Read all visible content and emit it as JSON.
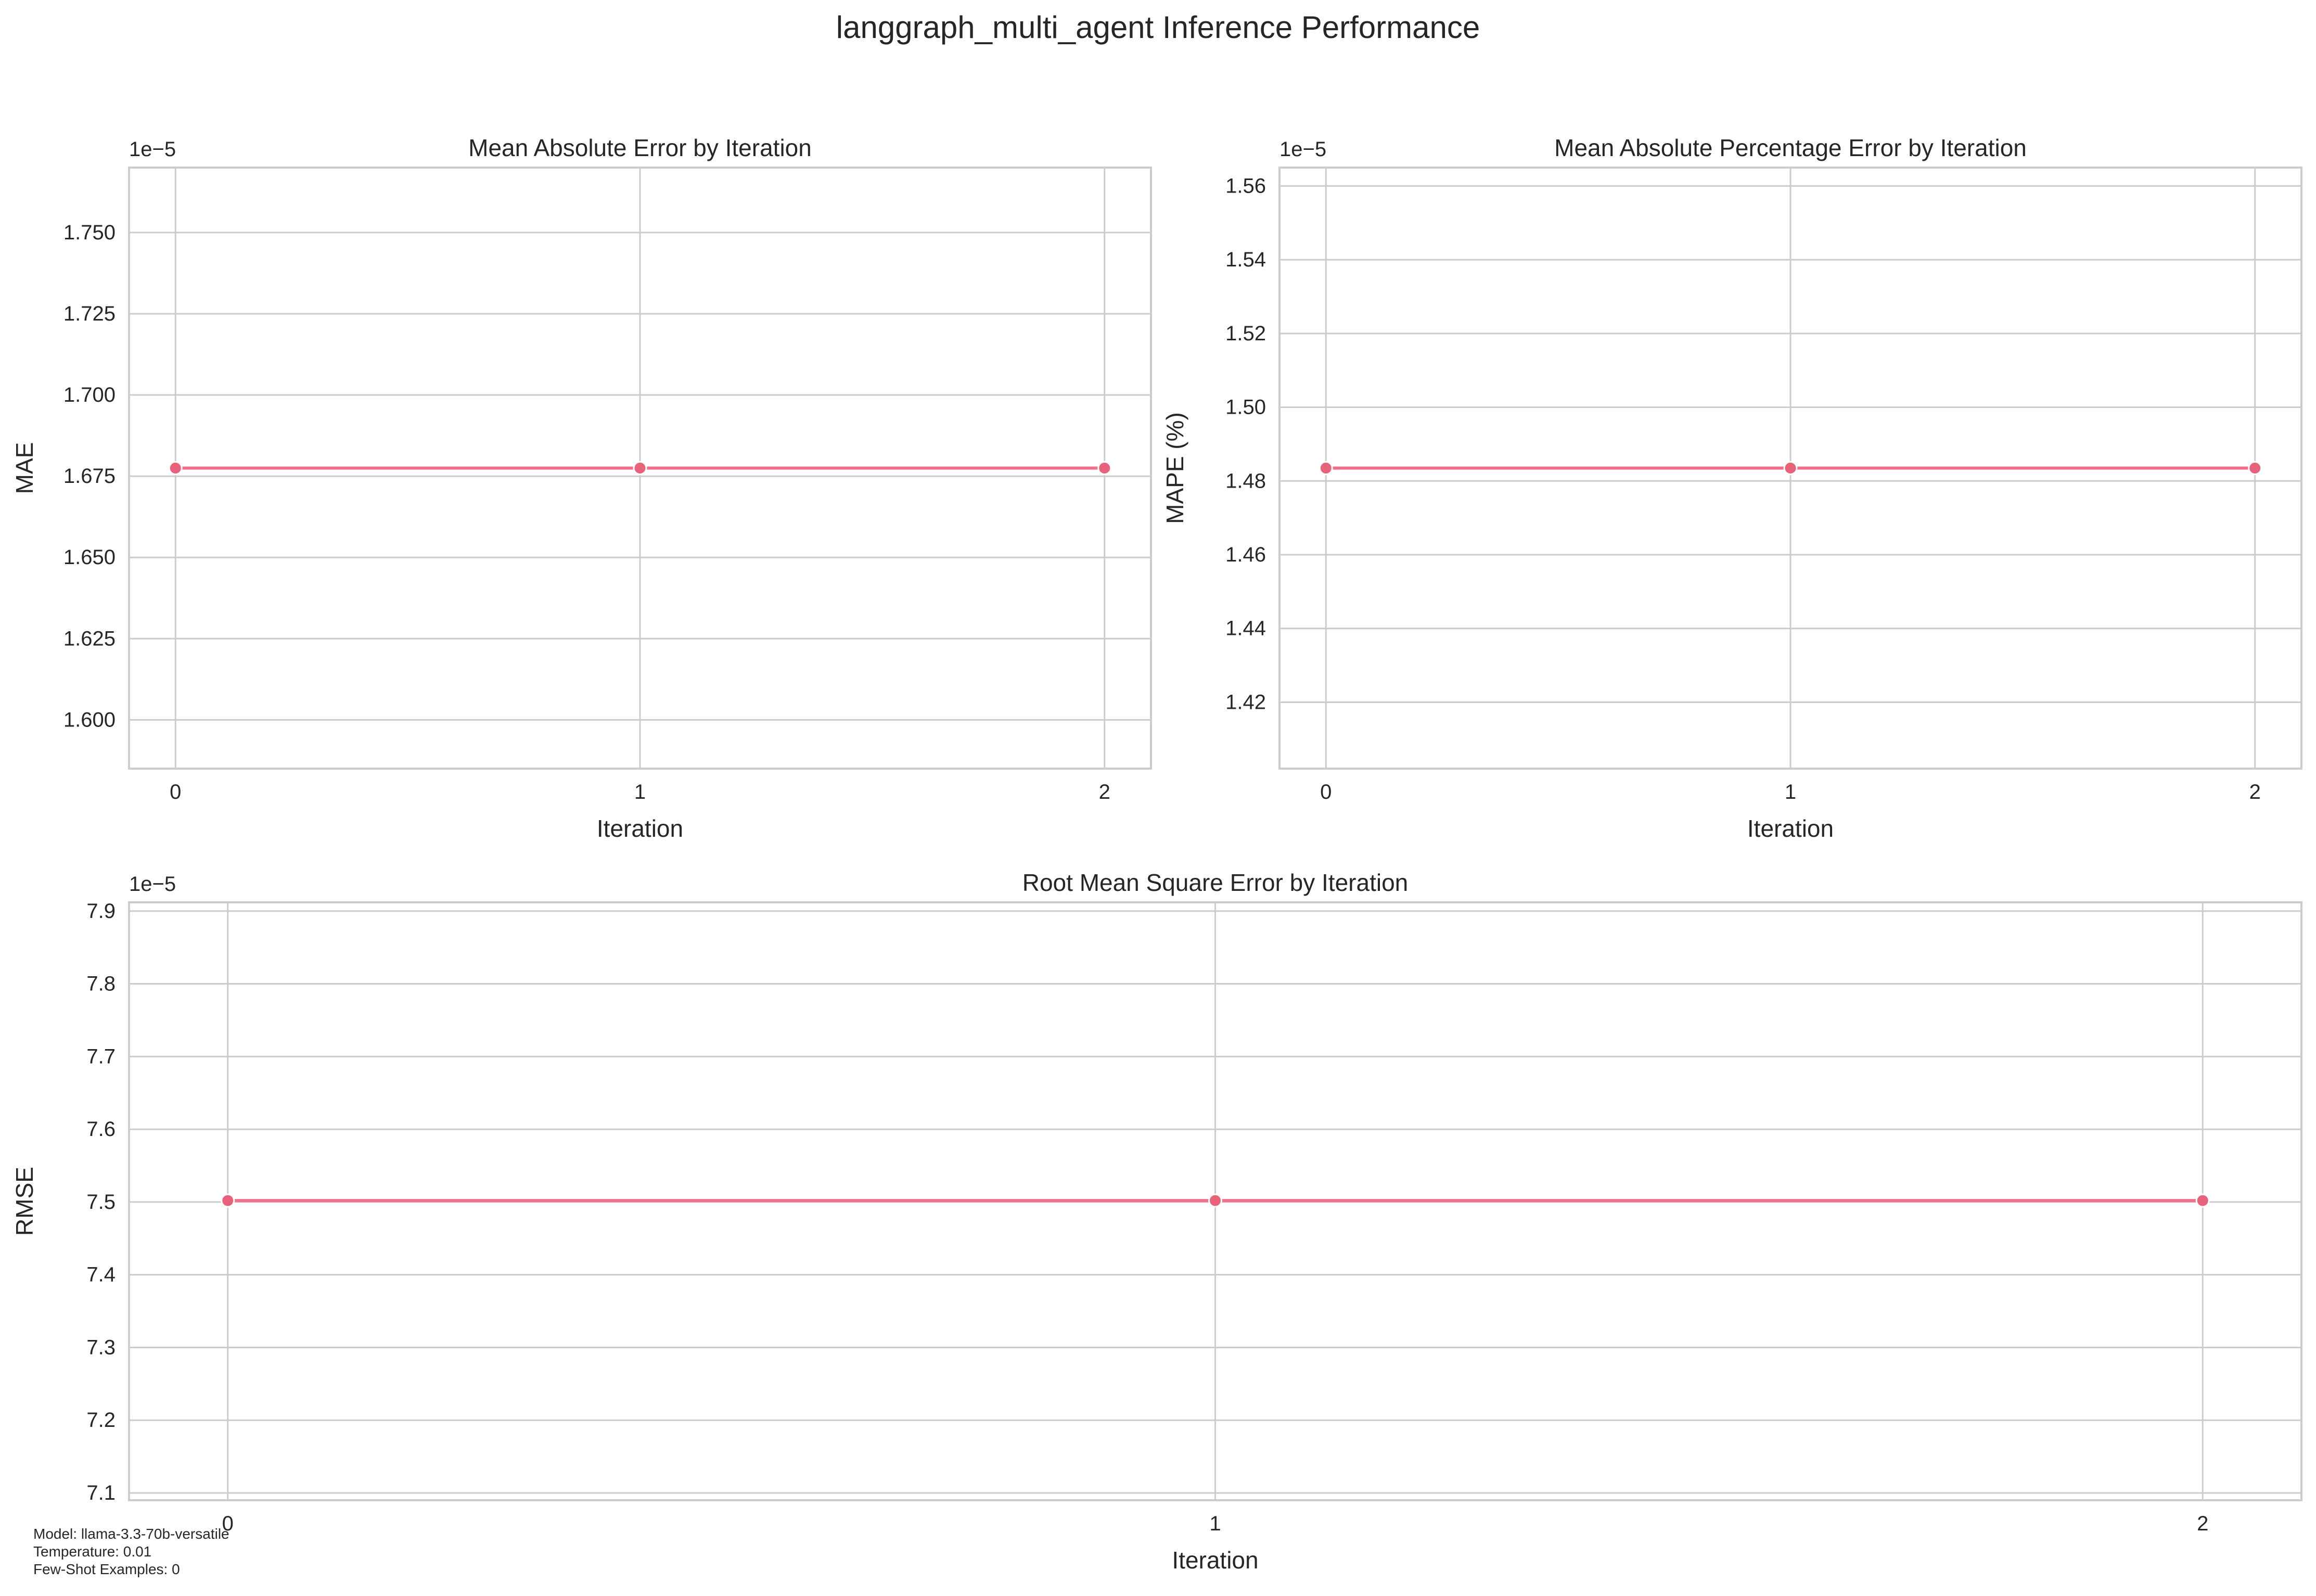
{
  "figure": {
    "suptitle": "langgraph_multi_agent Inference Performance",
    "footnote": {
      "model": "Model: llama-3.3-70b-versatile",
      "temperature": "Temperature: 0.01",
      "few_shot": "Few-Shot Examples: 0"
    }
  },
  "colors": {
    "line": "#f0718a",
    "marker": "#e8627c",
    "grid": "#cccccc",
    "axes_edge": "#cccccc",
    "text": "#262626"
  },
  "chart_data": [
    {
      "type": "line",
      "title": "Mean Absolute Error by Iteration",
      "xlabel": "Iteration",
      "ylabel": "MAE",
      "offset_label": "1e−5",
      "x": [
        0,
        1,
        2
      ],
      "series": [
        {
          "values": [
            1.6775,
            1.6775,
            1.6775
          ]
        }
      ],
      "xlim": [
        -0.1,
        2.1
      ],
      "ylim": [
        1.585,
        1.77
      ],
      "xticks": [
        "0",
        "1",
        "2"
      ],
      "yticks": [
        1.6,
        1.625,
        1.65,
        1.675,
        1.7,
        1.725,
        1.75
      ],
      "ytick_labels": [
        "1.600",
        "1.625",
        "1.650",
        "1.675",
        "1.700",
        "1.725",
        "1.750"
      ],
      "grid": true,
      "marker": "circle"
    },
    {
      "type": "line",
      "title": "Mean Absolute Percentage Error by Iteration",
      "xlabel": "Iteration",
      "ylabel": "MAPE (%)",
      "offset_label": "1e−5",
      "x": [
        0,
        1,
        2
      ],
      "series": [
        {
          "values": [
            1.4835,
            1.4835,
            1.4835
          ]
        }
      ],
      "xlim": [
        -0.1,
        2.1
      ],
      "ylim": [
        1.402,
        1.565
      ],
      "xticks": [
        "0",
        "1",
        "2"
      ],
      "yticks": [
        1.42,
        1.44,
        1.46,
        1.48,
        1.5,
        1.52,
        1.54,
        1.56
      ],
      "ytick_labels": [
        "1.42",
        "1.44",
        "1.46",
        "1.48",
        "1.50",
        "1.52",
        "1.54",
        "1.56"
      ],
      "grid": true,
      "marker": "circle"
    },
    {
      "type": "line",
      "title": "Root Mean Square Error by Iteration",
      "xlabel": "Iteration",
      "ylabel": "RMSE",
      "offset_label": "1e−5",
      "x": [
        0,
        1,
        2
      ],
      "series": [
        {
          "values": [
            7.502,
            7.502,
            7.502
          ]
        }
      ],
      "xlim": [
        -0.1,
        2.1
      ],
      "ylim": [
        7.09,
        7.912
      ],
      "xticks": [
        "0",
        "1",
        "2"
      ],
      "yticks": [
        7.1,
        7.2,
        7.3,
        7.4,
        7.5,
        7.6,
        7.7,
        7.8,
        7.9
      ],
      "ytick_labels": [
        "7.1",
        "7.2",
        "7.3",
        "7.4",
        "7.5",
        "7.6",
        "7.7",
        "7.8",
        "7.9"
      ],
      "grid": true,
      "marker": "circle"
    }
  ]
}
